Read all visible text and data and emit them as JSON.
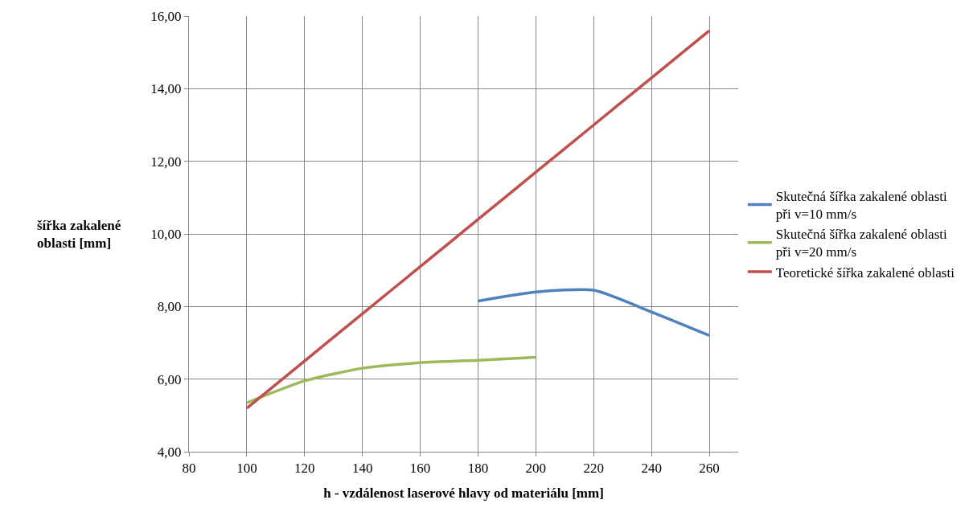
{
  "chart_data": {
    "type": "line",
    "xlabel": "h - vzdálenost laserové hlavy od materiálu [mm]",
    "ylabel": "šířka zakalené oblasti [mm]",
    "xlim": [
      80,
      270
    ],
    "xticks": [
      80,
      100,
      120,
      140,
      160,
      180,
      200,
      220,
      240,
      260
    ],
    "ylim": [
      4,
      16
    ],
    "yticks": [
      {
        "value": 4,
        "label": "4,00"
      },
      {
        "value": 6,
        "label": "6,00"
      },
      {
        "value": 8,
        "label": "8,00"
      },
      {
        "value": 10,
        "label": "10,00"
      },
      {
        "value": 12,
        "label": "12,00"
      },
      {
        "value": 14,
        "label": "14,00"
      },
      {
        "value": 16,
        "label": "16,00"
      }
    ],
    "grid": true,
    "legend": "right",
    "marker": "none",
    "line_style": "solid",
    "series": [
      {
        "name": "Skutečná šířka zakalené oblasti při v=10 mm/s",
        "color": "#4f81bd",
        "x": [
          180,
          200,
          220,
          240,
          260
        ],
        "values": [
          8.15,
          8.4,
          8.45,
          7.85,
          7.2
        ]
      },
      {
        "name": "Skutečná šířka zakalené oblasti při v=20 mm/s",
        "color": "#9bbb59",
        "x": [
          100,
          120,
          140,
          160,
          180,
          200
        ],
        "values": [
          5.35,
          5.95,
          6.3,
          6.45,
          6.52,
          6.6
        ]
      },
      {
        "name": "Teoretické šířka zakalené oblasti",
        "color": "#c0504d",
        "x": [
          100,
          120,
          140,
          160,
          180,
          200,
          220,
          240,
          260
        ],
        "values": [
          5.2,
          6.5,
          7.8,
          9.1,
          10.4,
          11.7,
          13.0,
          14.3,
          15.6
        ]
      }
    ]
  }
}
